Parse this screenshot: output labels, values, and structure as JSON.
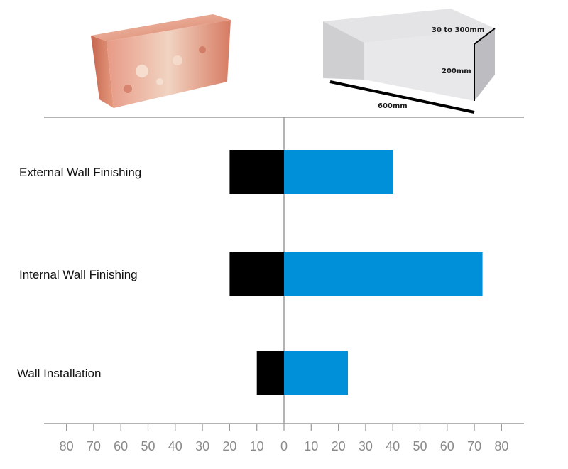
{
  "legend_images": {
    "left": "red-clay-brick",
    "right": "aac-block",
    "aac_dimensions": {
      "thickness": "30 to 300mm",
      "height": "200mm",
      "length": "600mm"
    }
  },
  "chart_data": {
    "type": "bar",
    "orientation": "horizontal-diverging",
    "categories": [
      "External Wall Finishing",
      "Internal Wall Finishing",
      "Wall Installation"
    ],
    "series": [
      {
        "values": [
          20,
          20,
          10
        ],
        "color": "#000000",
        "direction": "left"
      },
      {
        "values": [
          40,
          73,
          23.5
        ],
        "color": "#0090d9",
        "direction": "right"
      }
    ],
    "xlim": [
      -80,
      80
    ],
    "ticks": [
      80,
      70,
      60,
      50,
      40,
      30,
      20,
      10,
      0,
      10,
      20,
      30,
      40,
      50,
      60,
      70,
      80
    ],
    "grid": false,
    "title": "",
    "xlabel": "",
    "ylabel": ""
  }
}
